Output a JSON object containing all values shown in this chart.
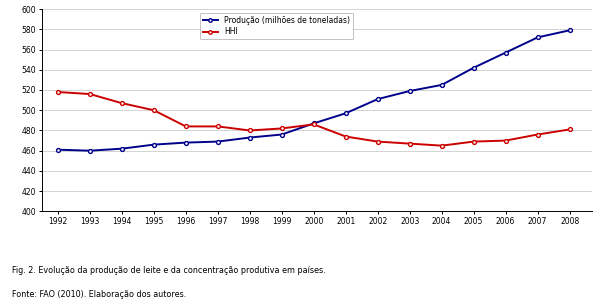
{
  "years": [
    1992,
    1993,
    1994,
    1995,
    1996,
    1997,
    1998,
    1999,
    2000,
    2001,
    2002,
    2003,
    2004,
    2005,
    2006,
    2007,
    2008
  ],
  "producao": [
    461,
    460,
    462,
    466,
    468,
    469,
    473,
    476,
    487,
    497,
    511,
    519,
    525,
    542,
    557,
    572,
    579
  ],
  "hhi": [
    518,
    516,
    507,
    500,
    484,
    484,
    480,
    482,
    486,
    474,
    469,
    467,
    465,
    469,
    470,
    476,
    481
  ],
  "ylim": [
    400,
    600
  ],
  "yticks": [
    400,
    420,
    440,
    460,
    480,
    500,
    520,
    540,
    560,
    580,
    600
  ],
  "line_producao_color": "#00008B",
  "line_hhi_color": "#CC0000",
  "legend_producao": "Produção (milhões de toneladas)",
  "legend_hhi": "HHI",
  "caption_line1": "Fig. 2. Evolução da produção de leite e da concentração produtiva em países.",
  "caption_line2": "Fonte: FAO (2010). Elaboração dos autores.",
  "background_color": "#ffffff",
  "grid_color": "#cccccc"
}
